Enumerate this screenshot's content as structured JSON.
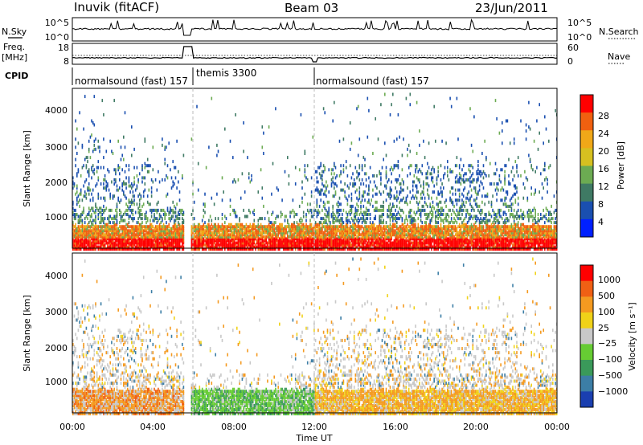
{
  "header": {
    "station": "Inuvik (fitACF)",
    "beam": "Beam 03",
    "date": "23/Jun/2011"
  },
  "panels": {
    "nsky_label": "N.Sky",
    "nsky_ticks": [
      "10^5",
      "10^0"
    ],
    "nsearch_label": "N.Search",
    "nsearch_ticks": [
      "10^5",
      "10^0"
    ],
    "freq_label_1": "Freq.",
    "freq_label_2": "[MHz]",
    "freq_ticks": [
      "18",
      "8"
    ],
    "nave_label": "Nave",
    "nave_ticks": [
      "60",
      "0"
    ],
    "cpid_label": "CPID",
    "cpid_segments": [
      {
        "label": "normalsound (fast) 157",
        "start_hour": 0.0
      },
      {
        "label": "themis 3300",
        "start_hour": 5.9
      },
      {
        "label": "normalsound (fast) 157",
        "start_hour": 12.0
      }
    ]
  },
  "chart_data": [
    {
      "type": "heatmap",
      "quantity": "Power",
      "ylabel": "Slant Range [km]",
      "colorbar_label": "Power [dB]",
      "xlabel": "Time UT",
      "x_ticks": [
        "00:00",
        "04:00",
        "08:00",
        "12:00",
        "16:00",
        "20:00",
        "00:00"
      ],
      "x_range_hours": [
        0,
        24
      ],
      "y_ticks": [
        "1000",
        "2000",
        "3000",
        "4000"
      ],
      "y_range_km": [
        180,
        4500
      ],
      "colorbar_ticks": [
        "28",
        "24",
        "20",
        "16",
        "12",
        "8",
        "4"
      ],
      "colorbar_colors": [
        "#0020ff",
        "#1a4fb0",
        "#3f7a64",
        "#6cab52",
        "#d6c020",
        "#f0a818",
        "#f06010",
        "#ff0000"
      ]
    },
    {
      "type": "heatmap",
      "quantity": "Velocity",
      "ylabel": "Slant Range [km]",
      "colorbar_label": "Velocity [m s⁻¹]",
      "xlabel": "Time UT",
      "x_ticks": [
        "00:00",
        "04:00",
        "08:00",
        "12:00",
        "16:00",
        "20:00",
        "00:00"
      ],
      "x_range_hours": [
        0,
        24
      ],
      "y_ticks": [
        "1000",
        "2000",
        "3000",
        "4000"
      ],
      "y_range_km": [
        180,
        4500
      ],
      "colorbar_ticks": [
        "1000",
        "500",
        "100",
        "25",
        "−25",
        "−100",
        "−500",
        "−1000"
      ],
      "colorbar_colors": [
        "#1a3fb0",
        "#3c7ea6",
        "#3a9a5a",
        "#66cc33",
        "#c8c8c8",
        "#f0d218",
        "#f49a20",
        "#f06014",
        "#ff0000"
      ]
    }
  ]
}
